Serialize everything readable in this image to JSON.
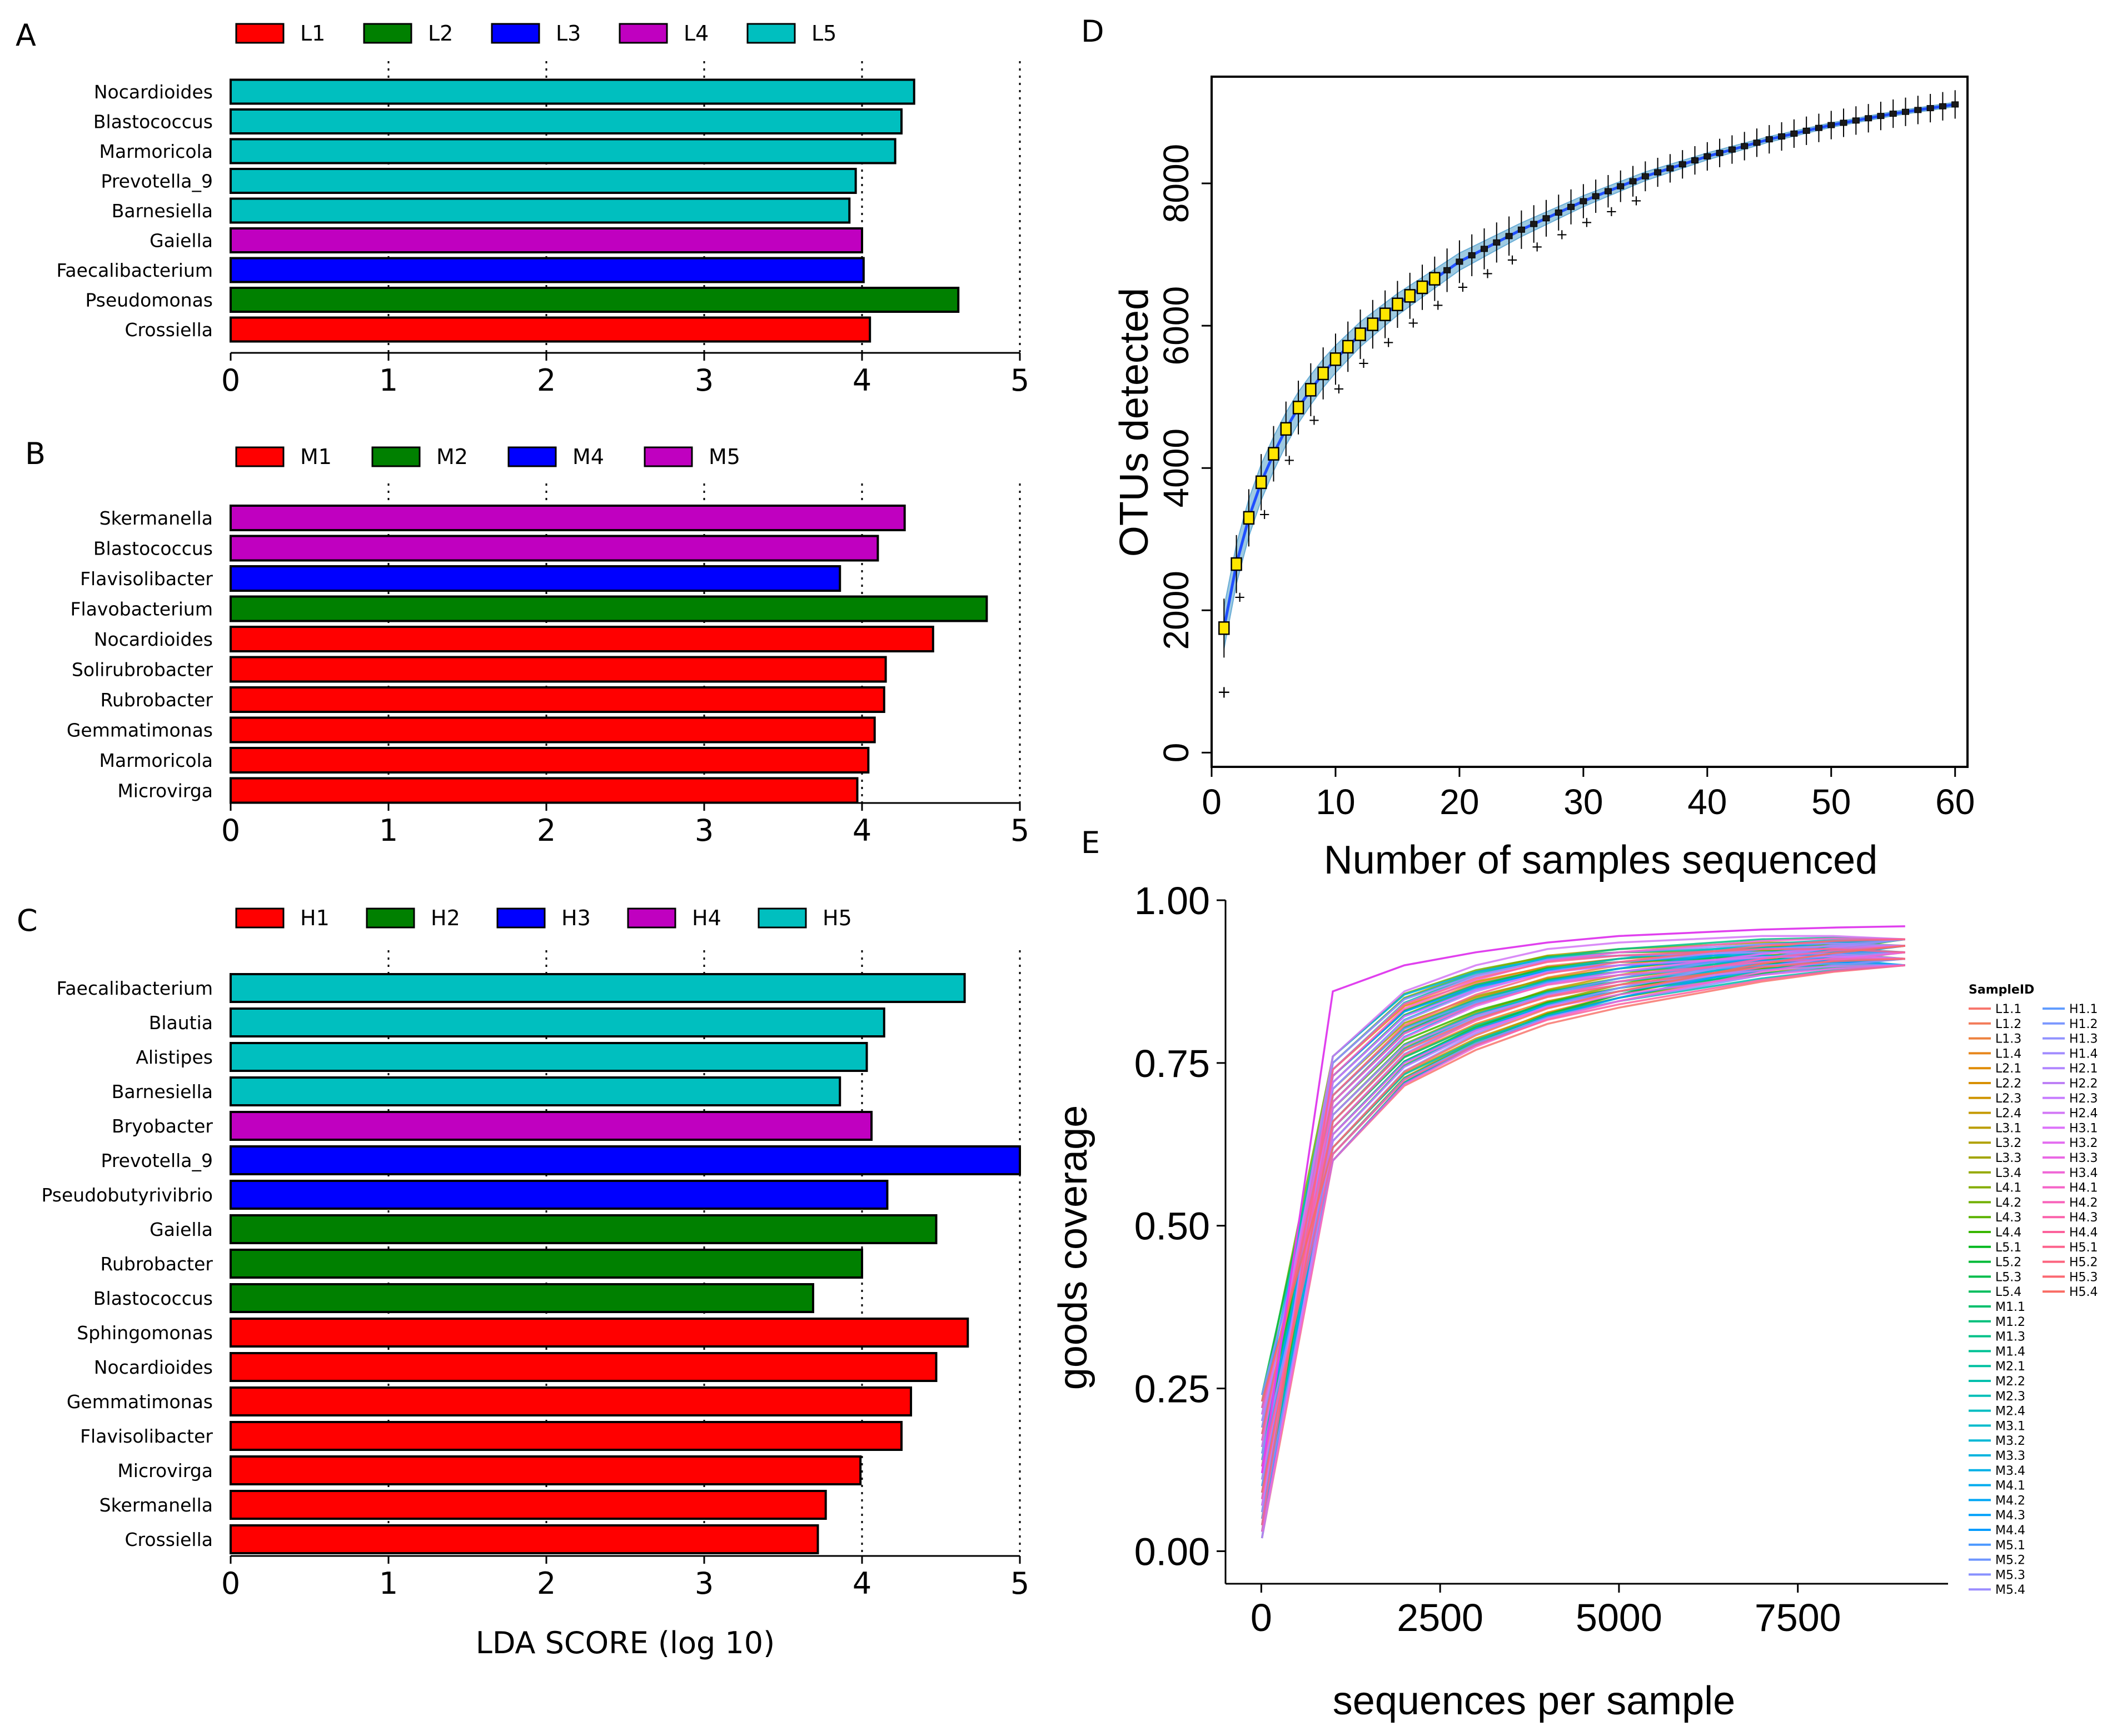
{
  "figure": {
    "panel_letters": [
      "A",
      "B",
      "C",
      "D",
      "E"
    ],
    "lda_axis_title": "LDA SCORE (log 10)"
  },
  "chart_data": [
    {
      "panel": "A",
      "type": "bar",
      "orientation": "horizontal",
      "legend": [
        {
          "name": "L1",
          "color": "#ff0000"
        },
        {
          "name": "L2",
          "color": "#008000"
        },
        {
          "name": "L3",
          "color": "#0000ff"
        },
        {
          "name": "L4",
          "color": "#c000c0"
        },
        {
          "name": "L5",
          "color": "#00bfbf"
        }
      ],
      "categories": [
        "Nocardioides",
        "Blastococcus",
        "Marmoricola",
        "Prevotella_9",
        "Barnesiella",
        "Gaiella",
        "Faecalibacterium",
        "Pseudomonas",
        "Crossiella"
      ],
      "values": [
        4.33,
        4.25,
        4.21,
        3.96,
        3.92,
        4.0,
        4.01,
        4.61,
        4.05
      ],
      "groups": [
        "L5",
        "L5",
        "L5",
        "L5",
        "L5",
        "L4",
        "L3",
        "L2",
        "L1"
      ],
      "xlim": [
        0,
        5
      ],
      "xticks": [
        0,
        1,
        2,
        3,
        4,
        5
      ]
    },
    {
      "panel": "B",
      "type": "bar",
      "orientation": "horizontal",
      "legend": [
        {
          "name": "M1",
          "color": "#ff0000"
        },
        {
          "name": "M2",
          "color": "#008000"
        },
        {
          "name": "M4",
          "color": "#0000ff"
        },
        {
          "name": "M5",
          "color": "#c000c0"
        }
      ],
      "categories": [
        "Skermanella",
        "Blastococcus",
        "Flavisolibacter",
        "Flavobacterium",
        "Nocardioides",
        "Solirubrobacter",
        "Rubrobacter",
        "Gemmatimonas",
        "Marmoricola",
        "Microvirga"
      ],
      "values": [
        4.27,
        4.1,
        3.86,
        4.79,
        4.45,
        4.15,
        4.14,
        4.08,
        4.04,
        3.97
      ],
      "groups": [
        "M5",
        "M5",
        "M4",
        "M2",
        "M1",
        "M1",
        "M1",
        "M1",
        "M1",
        "M1"
      ],
      "xlim": [
        0,
        5
      ],
      "xticks": [
        0,
        1,
        2,
        3,
        4,
        5
      ]
    },
    {
      "panel": "C",
      "type": "bar",
      "orientation": "horizontal",
      "legend": [
        {
          "name": "H1",
          "color": "#ff0000"
        },
        {
          "name": "H2",
          "color": "#008000"
        },
        {
          "name": "H3",
          "color": "#0000ff"
        },
        {
          "name": "H4",
          "color": "#c000c0"
        },
        {
          "name": "H5",
          "color": "#00bfbf"
        }
      ],
      "categories": [
        "Faecalibacterium",
        "Blautia",
        "Alistipes",
        "Barnesiella",
        "Bryobacter",
        "Prevotella_9",
        "Pseudobutyrivibrio",
        "Gaiella",
        "Rubrobacter",
        "Blastococcus",
        "Sphingomonas",
        "Nocardioides",
        "Gemmatimonas",
        "Flavisolibacter",
        "Microvirga",
        "Skermanella",
        "Crossiella"
      ],
      "values": [
        4.65,
        4.14,
        4.03,
        3.86,
        4.06,
        5.0,
        4.16,
        4.47,
        4.0,
        3.69,
        4.67,
        4.47,
        4.31,
        4.25,
        3.99,
        3.77,
        3.72
      ],
      "groups": [
        "H5",
        "H5",
        "H5",
        "H5",
        "H4",
        "H3",
        "H3",
        "H2",
        "H2",
        "H2",
        "H1",
        "H1",
        "H1",
        "H1",
        "H1",
        "H1",
        "H1"
      ],
      "xlim": [
        0,
        5
      ],
      "xticks": [
        0,
        1,
        2,
        3,
        4,
        5
      ],
      "xlabel": "LDA SCORE (log 10)"
    },
    {
      "panel": "D",
      "type": "line",
      "subtype": "rarefaction-boxplot",
      "xlabel": "Number of samples sequenced",
      "ylabel": "OTUs detected",
      "xlim": [
        0,
        61
      ],
      "ylim": [
        -200,
        9500
      ],
      "xticks": [
        0,
        10,
        20,
        30,
        40,
        50,
        60
      ],
      "yticks": [
        0,
        2000,
        4000,
        6000,
        8000
      ],
      "x": [
        1,
        2,
        3,
        4,
        5,
        6,
        7,
        8,
        9,
        10,
        12,
        15,
        20,
        25,
        30,
        35,
        40,
        45,
        50,
        55,
        60
      ],
      "y": [
        1750,
        2650,
        3300,
        3800,
        4200,
        4550,
        4850,
        5100,
        5330,
        5530,
        5880,
        6300,
        6900,
        7350,
        7750,
        8100,
        8380,
        8620,
        8820,
        8980,
        9110
      ],
      "outlier": {
        "x": 1,
        "y": 850
      }
    },
    {
      "panel": "E",
      "type": "line",
      "xlabel": "sequences per sample",
      "ylabel": "goods coverage",
      "xlim": [
        -500,
        9600
      ],
      "ylim": [
        -0.05,
        1.0
      ],
      "xticks": [
        0,
        2500,
        5000,
        7500
      ],
      "yticks": [
        "0.00",
        "0.25",
        "0.50",
        "0.75",
        "1.00"
      ],
      "x": [
        10,
        1000,
        2000,
        3000,
        4000,
        5000,
        6000,
        7000,
        8000,
        9000
      ],
      "series_typical": [
        0.08,
        0.66,
        0.77,
        0.82,
        0.855,
        0.875,
        0.89,
        0.905,
        0.915,
        0.92
      ],
      "series_outlier_H": [
        0.12,
        0.86,
        0.9,
        0.92,
        0.935,
        0.945,
        0.95,
        0.955,
        0.958,
        0.96
      ],
      "legend_title": "SampleID",
      "legend_col1": [
        "L1.1",
        "L1.2",
        "L1.3",
        "L1.4",
        "L2.1",
        "L2.2",
        "L2.3",
        "L2.4",
        "L3.1",
        "L3.2",
        "L3.3",
        "L3.4",
        "L4.1",
        "L4.2",
        "L4.3",
        "L4.4",
        "L5.1",
        "L5.2",
        "L5.3",
        "L5.4",
        "M1.1",
        "M1.2",
        "M1.3",
        "M1.4",
        "M2.1",
        "M2.2",
        "M2.3",
        "M2.4",
        "M3.1",
        "M3.2",
        "M3.3",
        "M3.4",
        "M4.1",
        "M4.2",
        "M4.3",
        "M4.4",
        "M5.1",
        "M5.2",
        "M5.3",
        "M5.4"
      ],
      "legend_col2": [
        "H1.1",
        "H1.2",
        "H1.3",
        "H1.4",
        "H2.1",
        "H2.2",
        "H2.3",
        "H2.4",
        "H3.1",
        "H3.2",
        "H3.3",
        "H3.4",
        "H4.1",
        "H4.2",
        "H4.3",
        "H4.4",
        "H5.1",
        "H5.2",
        "H5.3",
        "H5.4"
      ],
      "legend_col1_colors": [
        "#f8766d",
        "#f37b59",
        "#ed813e",
        "#e7861b",
        "#e08b00",
        "#d89000",
        "#cf9400",
        "#c59900",
        "#bb9d00",
        "#b0a100",
        "#a3a500",
        "#95a900",
        "#85ad00",
        "#72b000",
        "#5bb300",
        "#39b600",
        "#00b81f",
        "#00ba38",
        "#00bc4c",
        "#00be5d",
        "#00bf6d",
        "#00c07b",
        "#00c188",
        "#00c295",
        "#00c1a1",
        "#00c0ad",
        "#00bfb8",
        "#00bdc2",
        "#00bbcc",
        "#00b8d6",
        "#00b4df",
        "#00b0e7",
        "#00abee",
        "#00a6f5",
        "#00a0fa",
        "#009bfe",
        "#4c99ff",
        "#6e95ff",
        "#8891ff",
        "#9c8dff"
      ],
      "legend_col2_colors": [
        "#619cff",
        "#7b97ff",
        "#9091ff",
        "#a18bff",
        "#b085ff",
        "#bd80f6",
        "#c77cff",
        "#d277f6",
        "#dc71fa",
        "#e36cf0",
        "#ea68e4",
        "#f066d6",
        "#f564c8",
        "#f863ba",
        "#fb62ab",
        "#fc629c",
        "#fd638d",
        "#fc657f",
        "#fb6871",
        "#f96b64"
      ]
    }
  ]
}
